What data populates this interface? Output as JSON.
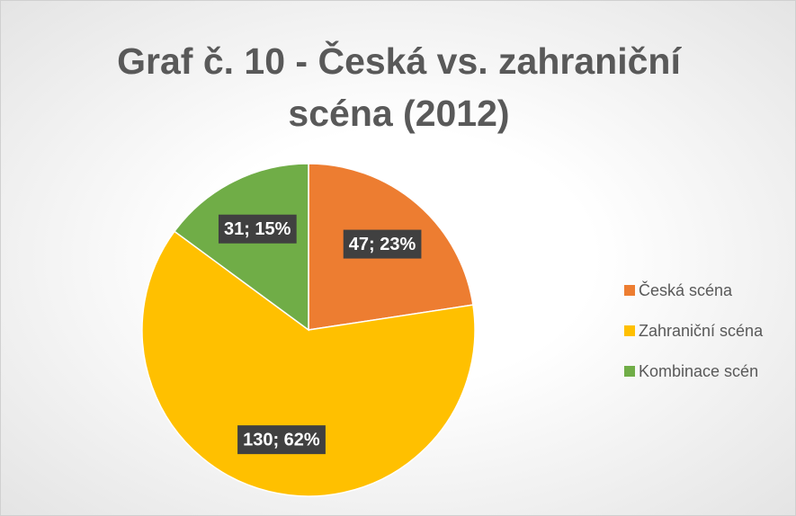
{
  "chart_data": {
    "type": "pie",
    "title": "Graf č. 10 - Česká vs. zahraniční scéna (2012)",
    "categories": [
      "Česká scéna",
      "Zahraniční scéna",
      "Kombinace scén"
    ],
    "values": [
      47,
      130,
      31
    ],
    "value_labels": [
      "47; 23%",
      "130; 62%",
      "31; 15%"
    ],
    "colors": [
      "#ed7d31",
      "#ffc000",
      "#70ad47"
    ],
    "legend": "right"
  }
}
